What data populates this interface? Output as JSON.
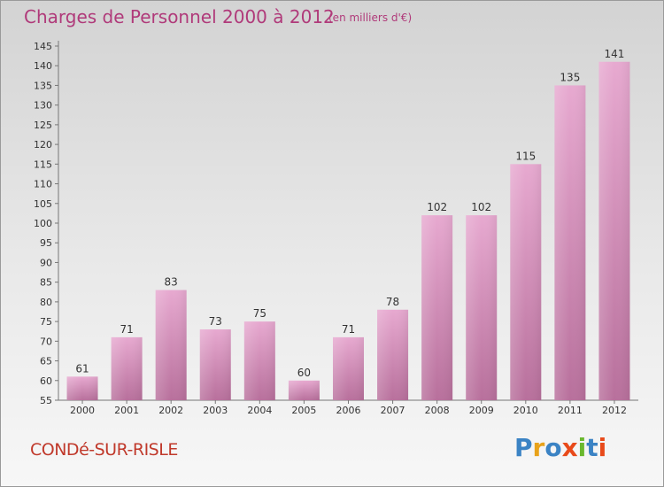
{
  "chart_data": {
    "type": "bar",
    "title": "Charges de Personnel 2000 à 2012",
    "subtitle": "(en milliers d'€)",
    "categories": [
      "2000",
      "2001",
      "2002",
      "2003",
      "2004",
      "2005",
      "2006",
      "2007",
      "2008",
      "2009",
      "2010",
      "2011",
      "2012"
    ],
    "values": [
      61,
      71,
      83,
      73,
      75,
      60,
      71,
      78,
      102,
      102,
      115,
      135,
      141
    ],
    "ylim": [
      55,
      145
    ],
    "ytick_step": 5,
    "grid": false,
    "bar_color": "#d98fbd"
  },
  "place_name": "CONDé-SUR-RISLE",
  "logo": {
    "text": "Proxiti",
    "colors": [
      "#3b83c4",
      "#e8a21a",
      "#3b83c4",
      "#e84a1a",
      "#6ab82e",
      "#3b83c4",
      "#e84a1a"
    ]
  }
}
